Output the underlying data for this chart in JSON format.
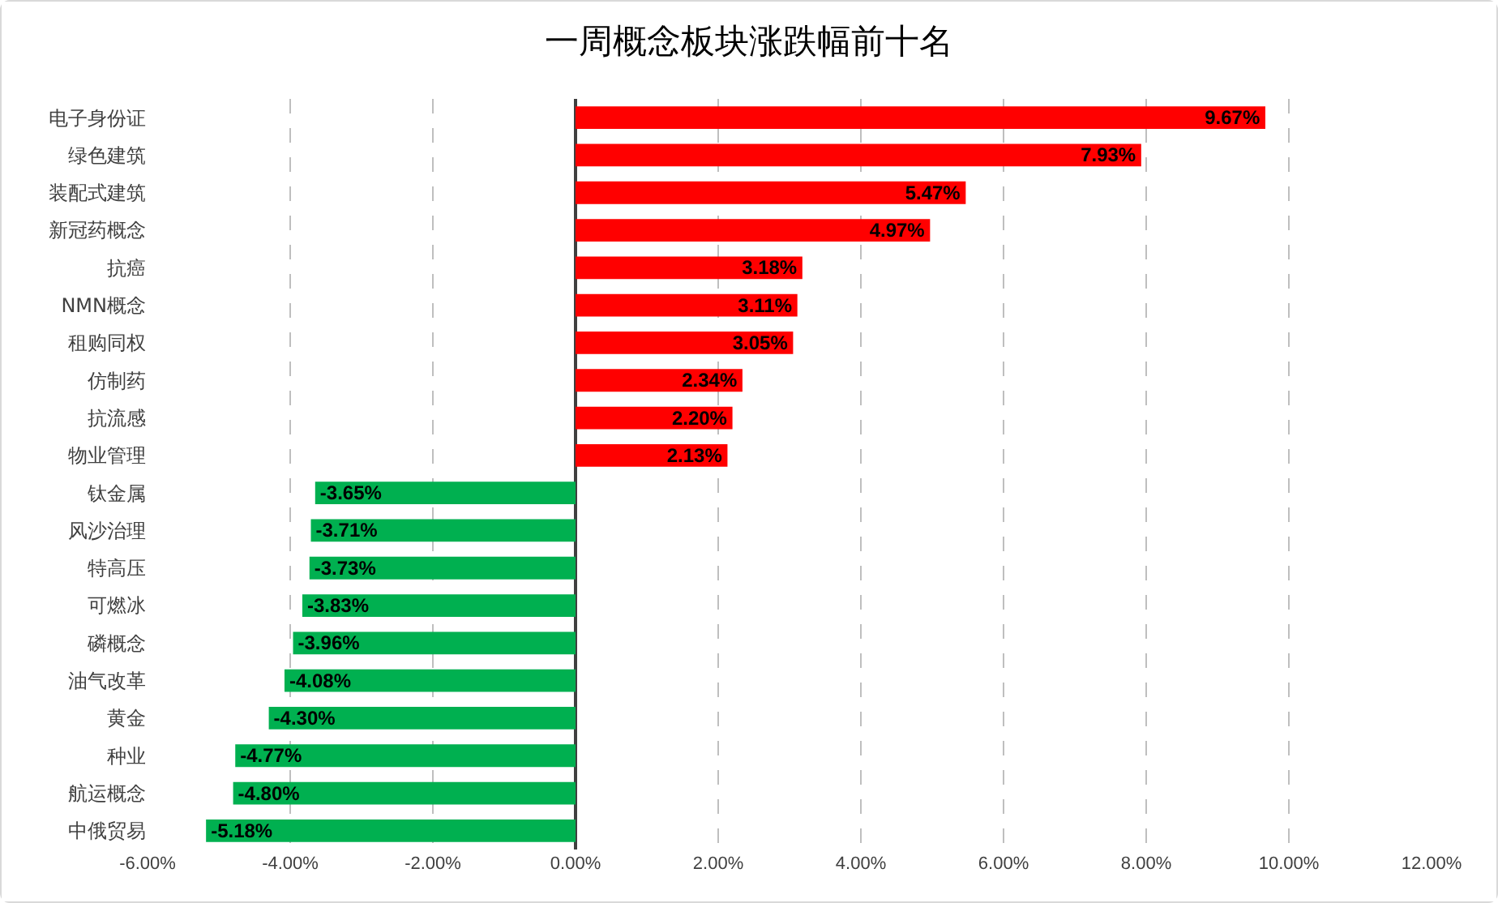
{
  "chart_data": {
    "type": "bar",
    "orientation": "horizontal",
    "title": "一周概念板块涨跌幅前十名",
    "categories": [
      "电子身份证",
      "绿色建筑",
      "装配式建筑",
      "新冠药概念",
      "抗癌",
      "NMN概念",
      "租购同权",
      "仿制药",
      "抗流感",
      "物业管理",
      "钛金属",
      "风沙治理",
      "特高压",
      "可燃冰",
      "磷概念",
      "油气改革",
      "黄金",
      "种业",
      "航运概念",
      "中俄贸易"
    ],
    "values": [
      9.67,
      7.93,
      5.47,
      4.97,
      3.18,
      3.11,
      3.05,
      2.34,
      2.2,
      2.13,
      -3.65,
      -3.71,
      -3.73,
      -3.83,
      -3.96,
      -4.08,
      -4.3,
      -4.77,
      -4.8,
      -5.18
    ],
    "value_labels": [
      "9.67%",
      "7.93%",
      "5.47%",
      "4.97%",
      "3.18%",
      "3.11%",
      "3.05%",
      "2.34%",
      "2.20%",
      "2.13%",
      "-3.65%",
      "-3.71%",
      "-3.73%",
      "-3.83%",
      "-3.96%",
      "-4.08%",
      "-4.30%",
      "-4.77%",
      "-4.80%",
      "-5.18%"
    ],
    "colors": [
      "#ff0000",
      "#ff0000",
      "#ff0000",
      "#ff0000",
      "#ff0000",
      "#ff0000",
      "#ff0000",
      "#ff0000",
      "#ff0000",
      "#ff0000",
      "#00b050",
      "#00b050",
      "#00b050",
      "#00b050",
      "#00b050",
      "#00b050",
      "#00b050",
      "#00b050",
      "#00b050",
      "#00b050"
    ],
    "xlim": [
      -6,
      12
    ],
    "xticks": [
      {
        "value": -6,
        "label": "-6.00%"
      },
      {
        "value": -4,
        "label": "-4.00%"
      },
      {
        "value": -2,
        "label": "-2.00%"
      },
      {
        "value": 0,
        "label": "0.00%"
      },
      {
        "value": 2,
        "label": "2.00%"
      },
      {
        "value": 4,
        "label": "4.00%"
      },
      {
        "value": 6,
        "label": "6.00%"
      },
      {
        "value": 8,
        "label": "8.00%"
      },
      {
        "value": 10,
        "label": "10.00%"
      },
      {
        "value": 12,
        "label": "12.00%"
      }
    ],
    "grid": "x"
  }
}
